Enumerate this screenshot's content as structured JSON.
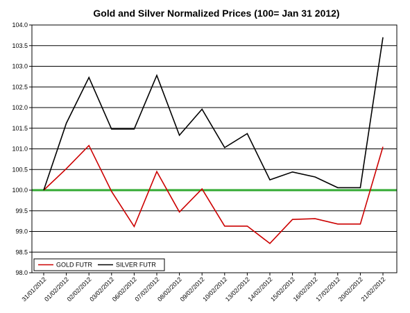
{
  "chart_data": {
    "type": "line",
    "title": "Gold and Silver Normalized Prices  (100= Jan 31 2012)",
    "xlabel": "",
    "ylabel": "",
    "ylim": [
      98.0,
      104.0
    ],
    "yticks": [
      "98.0",
      "98.5",
      "99.0",
      "99.5",
      "100.0",
      "100.5",
      "101.0",
      "101.5",
      "102.0",
      "102.5",
      "103.0",
      "103.5",
      "104.0"
    ],
    "categories": [
      "31/01/2012",
      "01/02/2012",
      "02/02/2012",
      "03/02/2012",
      "06/02/2012",
      "07/02/2012",
      "08/02/2012",
      "09/02/2012",
      "10/02/2012",
      "13/02/2012",
      "14/02/2012",
      "15/02/2012",
      "16/02/2012",
      "17/02/2012",
      "20/02/2012",
      "21/02/2012"
    ],
    "grid": true,
    "legend_position": "bottom-left",
    "series": [
      {
        "name": "GOLD  FUTR",
        "color": "#cc0000",
        "values": [
          100.0,
          100.52,
          101.08,
          99.97,
          99.12,
          100.45,
          99.47,
          100.03,
          99.13,
          99.13,
          98.71,
          99.29,
          99.31,
          99.18,
          99.18,
          101.05
        ]
      },
      {
        "name": "SILVER  FUTR",
        "color": "#000000",
        "values": [
          100.0,
          101.62,
          102.73,
          101.48,
          101.48,
          102.78,
          101.33,
          101.96,
          101.03,
          101.37,
          100.25,
          100.44,
          100.32,
          100.06,
          100.06,
          103.7
        ]
      }
    ],
    "reference_line": {
      "value": 100.0,
      "color": "#33aa33"
    }
  }
}
